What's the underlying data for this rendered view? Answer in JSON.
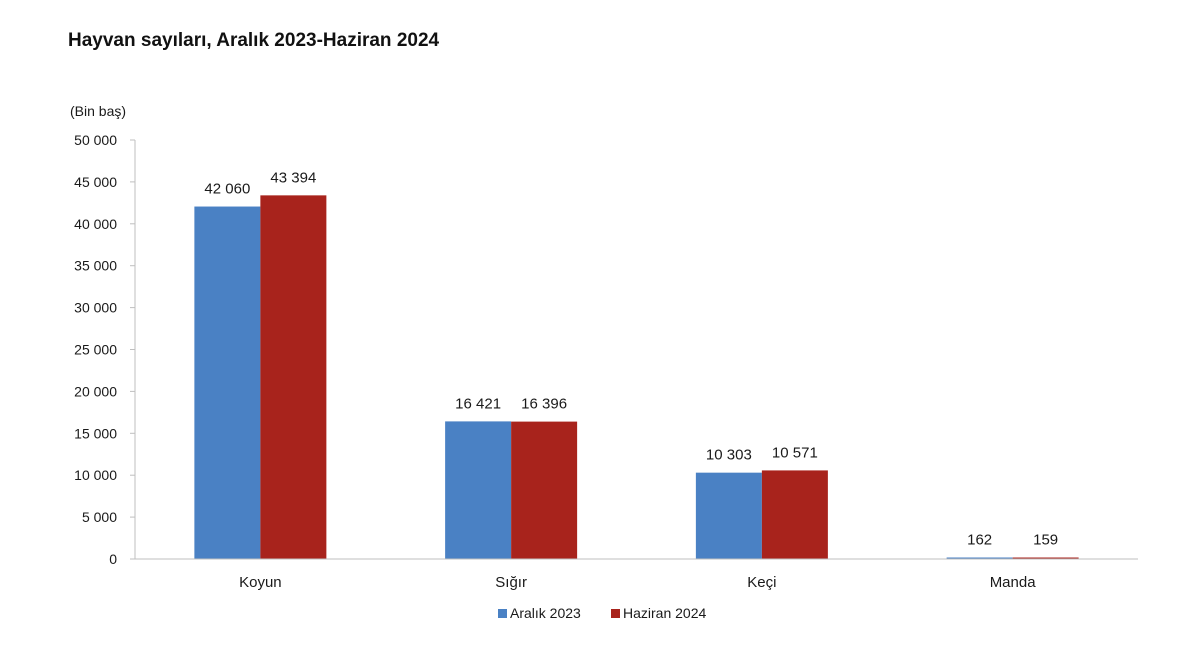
{
  "chart_data": {
    "type": "bar",
    "title": "Hayvan sayıları, Aralık 2023-Haziran 2024",
    "ylabel": "(Bin baş)",
    "xlabel": "",
    "ylim": [
      0,
      50000
    ],
    "yticks": [
      0,
      5000,
      10000,
      15000,
      20000,
      25000,
      30000,
      35000,
      40000,
      45000,
      50000
    ],
    "ytick_labels": [
      "0",
      "5 000",
      "10 000",
      "15 000",
      "20 000",
      "25 000",
      "30 000",
      "35 000",
      "40 000",
      "45 000",
      "50 000"
    ],
    "categories": [
      "Koyun",
      "Sığır",
      "Keçi",
      "Manda"
    ],
    "series": [
      {
        "name": "Aralık 2023",
        "color": "#4a81c4",
        "values": [
          42060,
          16421,
          10303,
          162
        ],
        "labels": [
          "42 060",
          "16 421",
          "10 303",
          "162"
        ]
      },
      {
        "name": "Haziran 2024",
        "color": "#a8231c",
        "values": [
          43394,
          16396,
          10571,
          159
        ],
        "labels": [
          "43 394",
          "16 396",
          "10 571",
          "159"
        ]
      }
    ],
    "grid": false,
    "legend_position": "bottom"
  }
}
